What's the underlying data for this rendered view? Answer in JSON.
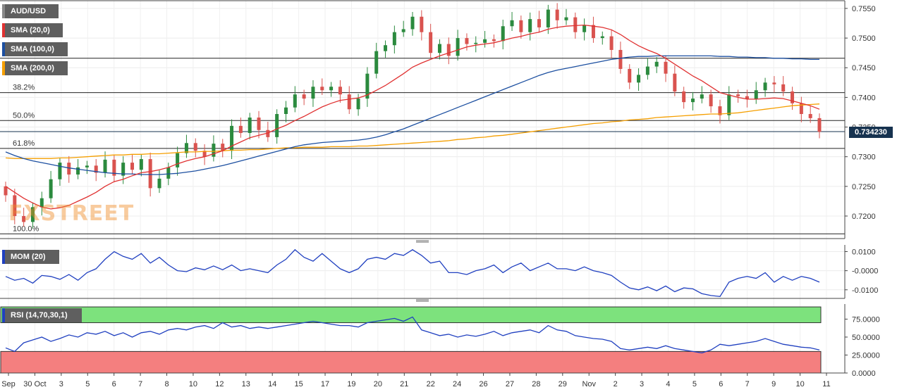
{
  "chart_data": [
    {
      "type": "candlestick",
      "panel": "price",
      "symbol": "AUD/USD",
      "y_ticks": [
        "0.7550",
        "0.7500",
        "0.7450",
        "0.7400",
        "0.7350",
        "0.7300",
        "0.7250",
        "0.7200"
      ],
      "ylim": [
        0.7162,
        0.7563
      ],
      "last_price": "0.734230",
      "last_value": 0.73423,
      "legend": [
        "SMA (20,0)",
        "SMA (100,0)",
        "SMA (200,0)"
      ],
      "fib_levels": [
        {
          "label": "38.2%",
          "value": 0.7408
        },
        {
          "label": "50.0%",
          "value": 0.7361
        },
        {
          "label": "61.8%",
          "value": 0.7314
        },
        {
          "label": "100.0%",
          "value": 0.717
        },
        {
          "label": "",
          "value": 0.7466
        }
      ],
      "close_series": [
        0.7235,
        0.72,
        0.719,
        0.7215,
        0.723,
        0.7262,
        0.729,
        0.727,
        0.7282,
        0.7285,
        0.7273,
        0.7295,
        0.7268,
        0.729,
        0.7278,
        0.7296,
        0.7247,
        0.7263,
        0.7282,
        0.7306,
        0.7323,
        0.731,
        0.73,
        0.7322,
        0.731,
        0.7352,
        0.734,
        0.7366,
        0.7345,
        0.7333,
        0.7372,
        0.7383,
        0.7405,
        0.7398,
        0.7418,
        0.7412,
        0.7418,
        0.7405,
        0.738,
        0.7398,
        0.744,
        0.7478,
        0.7488,
        0.751,
        0.7515,
        0.7536,
        0.751,
        0.7475,
        0.749,
        0.747,
        0.75,
        0.749,
        0.7492,
        0.7498,
        0.7495,
        0.752,
        0.753,
        0.751,
        0.7532,
        0.7518,
        0.7548,
        0.753,
        0.7535,
        0.751,
        0.7522,
        0.75,
        0.7503,
        0.748,
        0.7448,
        0.7425,
        0.7438,
        0.7452,
        0.746,
        0.744,
        0.741,
        0.7392,
        0.7398,
        0.7405,
        0.7385,
        0.737,
        0.7405,
        0.7402,
        0.7397,
        0.7412,
        0.7425,
        0.7422,
        0.741,
        0.739,
        0.7372,
        0.7365,
        0.7342
      ],
      "sma_20": [
        0.725,
        0.724,
        0.723,
        0.7222,
        0.7215,
        0.7212,
        0.7214,
        0.7218,
        0.7225,
        0.7232,
        0.724,
        0.725,
        0.7258,
        0.7262,
        0.7268,
        0.7273,
        0.7275,
        0.7278,
        0.7282,
        0.7288,
        0.7293,
        0.7297,
        0.73,
        0.7305,
        0.731,
        0.7318,
        0.7325,
        0.7332,
        0.7336,
        0.734,
        0.7347,
        0.7353,
        0.7361,
        0.7368,
        0.7376,
        0.7384,
        0.739,
        0.7395,
        0.7397,
        0.7399,
        0.7404,
        0.7412,
        0.742,
        0.743,
        0.744,
        0.7451,
        0.7458,
        0.7464,
        0.747,
        0.7475,
        0.748,
        0.7485,
        0.7488,
        0.749,
        0.7492,
        0.7496,
        0.75,
        0.7503,
        0.7507,
        0.751,
        0.7515,
        0.7518,
        0.752,
        0.7521,
        0.7522,
        0.752,
        0.7518,
        0.7514,
        0.7506,
        0.7496,
        0.7487,
        0.748,
        0.7474,
        0.7466,
        0.7456,
        0.7446,
        0.7436,
        0.7428,
        0.7418,
        0.7408,
        0.7404,
        0.74,
        0.7397,
        0.7397,
        0.7398,
        0.7399,
        0.7398,
        0.7394,
        0.739,
        0.7386,
        0.738
      ],
      "sma_100": [
        0.7308,
        0.7302,
        0.7297,
        0.7293,
        0.729,
        0.7287,
        0.7284,
        0.7281,
        0.7279,
        0.7277,
        0.7275,
        0.7273,
        0.7272,
        0.7271,
        0.7271,
        0.727,
        0.727,
        0.727,
        0.7271,
        0.7272,
        0.7274,
        0.7276,
        0.7279,
        0.7282,
        0.7285,
        0.7289,
        0.7293,
        0.7297,
        0.7301,
        0.7305,
        0.7309,
        0.7313,
        0.7317,
        0.732,
        0.7322,
        0.7324,
        0.7325,
        0.7326,
        0.7327,
        0.7328,
        0.733,
        0.7333,
        0.7337,
        0.7342,
        0.7347,
        0.7353,
        0.7359,
        0.7365,
        0.7371,
        0.7377,
        0.7383,
        0.7389,
        0.7395,
        0.7401,
        0.7407,
        0.7413,
        0.7419,
        0.7425,
        0.7431,
        0.7437,
        0.7442,
        0.7446,
        0.7449,
        0.7452,
        0.7455,
        0.7458,
        0.7461,
        0.7464,
        0.7466,
        0.7468,
        0.7469,
        0.7469,
        0.747,
        0.747,
        0.747,
        0.747,
        0.747,
        0.747,
        0.747,
        0.7469,
        0.7469,
        0.7468,
        0.7468,
        0.7467,
        0.7467,
        0.7466,
        0.7466,
        0.7465,
        0.7465,
        0.7464,
        0.7464
      ],
      "sma_200": [
        0.7298,
        0.7297,
        0.7297,
        0.7297,
        0.7297,
        0.7297,
        0.7298,
        0.7298,
        0.7299,
        0.73,
        0.7301,
        0.7302,
        0.7303,
        0.7303,
        0.7304,
        0.7304,
        0.7305,
        0.7305,
        0.7306,
        0.7307,
        0.7308,
        0.7308,
        0.7309,
        0.7309,
        0.731,
        0.7311,
        0.7311,
        0.7312,
        0.7312,
        0.7313,
        0.7314,
        0.7315,
        0.7315,
        0.7316,
        0.7316,
        0.7316,
        0.7317,
        0.7317,
        0.7317,
        0.7318,
        0.7318,
        0.7319,
        0.732,
        0.7321,
        0.7322,
        0.7323,
        0.7324,
        0.7325,
        0.7326,
        0.7327,
        0.7329,
        0.733,
        0.7332,
        0.7333,
        0.7335,
        0.7336,
        0.7338,
        0.734,
        0.7342,
        0.7344,
        0.7346,
        0.7348,
        0.735,
        0.7352,
        0.7354,
        0.7356,
        0.7357,
        0.7359,
        0.736,
        0.7362,
        0.7363,
        0.7364,
        0.7366,
        0.7367,
        0.7368,
        0.7369,
        0.737,
        0.7371,
        0.7372,
        0.7372,
        0.7373,
        0.7374,
        0.7376,
        0.7378,
        0.738,
        0.7382,
        0.7384,
        0.7386,
        0.7387,
        0.7388,
        0.7389
      ]
    },
    {
      "type": "line",
      "panel": "momentum",
      "legend": "MOM (20)",
      "y_ticks": [
        "0.0100",
        "-0.0000",
        "-0.0100"
      ],
      "ylim": [
        -0.0145,
        0.0135
      ],
      "values": [
        -0.003,
        -0.005,
        -0.004,
        -0.0065,
        -0.0025,
        -0.003,
        -0.0045,
        -0.002,
        -0.005,
        -0.001,
        0.001,
        0.006,
        0.01,
        0.0075,
        0.006,
        0.009,
        0.004,
        0.007,
        0.003,
        0.0,
        -0.0005,
        0.0015,
        0.0005,
        0.0025,
        0.0005,
        0.003,
        0.0,
        0.001,
        0.0,
        -0.001,
        0.003,
        0.006,
        0.011,
        0.007,
        0.005,
        0.009,
        0.005,
        0.001,
        -0.001,
        0.001,
        0.006,
        0.007,
        0.006,
        0.009,
        0.008,
        0.011,
        0.008,
        0.004,
        0.005,
        -0.001,
        -0.001,
        -0.002,
        0.0,
        0.001,
        0.003,
        -0.001,
        0.002,
        0.004,
        0.0,
        0.002,
        0.004,
        0.001,
        0.001,
        0.0,
        0.002,
        0.0,
        -0.001,
        -0.0025,
        -0.006,
        -0.009,
        -0.01,
        -0.0085,
        -0.0105,
        -0.008,
        -0.011,
        -0.009,
        -0.0095,
        -0.012,
        -0.013,
        -0.0135,
        -0.006,
        -0.004,
        -0.003,
        -0.004,
        -0.001,
        -0.006,
        -0.003,
        -0.005,
        -0.003,
        -0.004,
        -0.006
      ]
    },
    {
      "type": "line",
      "panel": "rsi",
      "legend": "RSI (14,70,30,1)",
      "y_ticks": [
        "75.0000",
        "50.0000",
        "25.0000",
        "0.0000"
      ],
      "ylim": [
        0,
        96
      ],
      "overbought": 70,
      "oversold": 30,
      "values": [
        35,
        30,
        42,
        46,
        50,
        44,
        48,
        53,
        50,
        56,
        54,
        58,
        52,
        56,
        50,
        56,
        58,
        54,
        60,
        62,
        60,
        64,
        66,
        62,
        70,
        64,
        66,
        62,
        64,
        62,
        64,
        66,
        68,
        70,
        72,
        70,
        68,
        66,
        66,
        64,
        70,
        72,
        74,
        76,
        72,
        78,
        60,
        56,
        52,
        54,
        50,
        53,
        51,
        54,
        58,
        52,
        56,
        58,
        60,
        56,
        66,
        60,
        58,
        52,
        50,
        48,
        47,
        44,
        34,
        32,
        34,
        36,
        34,
        38,
        34,
        32,
        30,
        28,
        32,
        40,
        38,
        40,
        42,
        44,
        48,
        44,
        40,
        38,
        36,
        35,
        32
      ]
    }
  ],
  "x_ticks": [
    "Sep",
    "30 Oct",
    "3",
    "5",
    "6",
    "7",
    "8",
    "10",
    "12",
    "13",
    "14",
    "15",
    "17",
    "19",
    "20",
    "21",
    "22",
    "24",
    "26",
    "27",
    "28",
    "29",
    "Nov",
    "2",
    "3",
    "4",
    "5",
    "6",
    "7",
    "9",
    "10",
    "11"
  ],
  "colors": {
    "bull": "#2b8a3e",
    "bear": "#d9534f",
    "sma_20": "#e03131",
    "sma_100": "#1c4fa0",
    "sma_200": "#f59f00",
    "mom_line": "#2040c0",
    "rsi_line": "#2040c0",
    "rsi_overbought_zone": "#7de27d",
    "rsi_oversold_zone": "#f47f7f",
    "price_badge": "#16324f",
    "legend_bg": "#5f5f5f"
  }
}
